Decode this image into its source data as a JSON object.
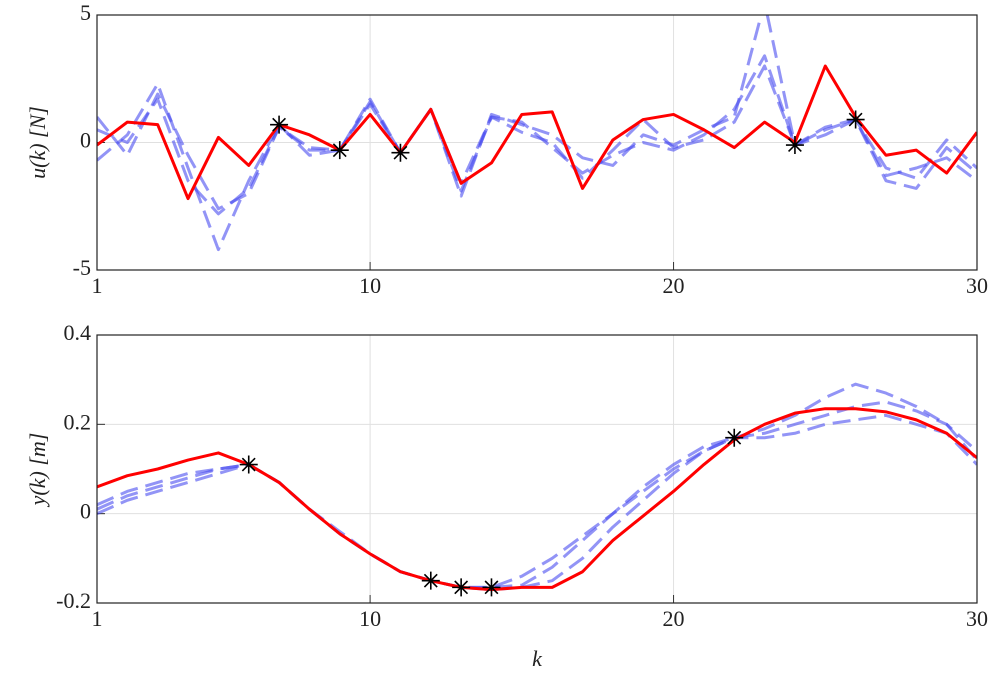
{
  "chart_data": [
    {
      "type": "line",
      "ylabel": "u(k) [N]",
      "x": [
        1,
        2,
        3,
        4,
        5,
        6,
        7,
        8,
        9,
        10,
        11,
        12,
        13,
        14,
        15,
        16,
        17,
        18,
        19,
        20,
        21,
        22,
        23,
        24,
        25,
        26,
        27,
        28,
        29,
        30
      ],
      "xlim": [
        1,
        30
      ],
      "xticks": [
        1,
        10,
        20,
        30
      ],
      "ylim": [
        -5,
        5
      ],
      "yticks": [
        -5,
        0,
        5
      ],
      "grid": true,
      "series": [
        {
          "color": "#4a4cf0",
          "dashed": true,
          "opacity": 0.6,
          "values": [
            1.0,
            -0.5,
            1.9,
            -0.5,
            -2.6,
            -2.0,
            0.6,
            -0.3,
            -0.3,
            1.6,
            -0.4,
            1.3,
            -1.9,
            1.0,
            0.8,
            -0.2,
            -1.2,
            -0.5,
            0.0,
            -0.3,
            0.3,
            1.3,
            3.4,
            -0.1,
            0.6,
            0.9,
            -1.3,
            -1.0,
            -0.6,
            -1.5
          ]
        },
        {
          "color": "#4a4cf0",
          "dashed": true,
          "opacity": 0.6,
          "values": [
            -0.7,
            0.3,
            2.3,
            -1.0,
            -4.2,
            -1.5,
            0.7,
            -0.5,
            -0.3,
            1.7,
            -0.4,
            1.3,
            -2.1,
            1.1,
            0.7,
            0.3,
            -0.6,
            -0.9,
            0.3,
            -0.1,
            0.5,
            1.0,
            5.5,
            -0.1,
            0.3,
            0.9,
            -1.5,
            -1.8,
            -0.2,
            -1.2
          ]
        },
        {
          "color": "#4a4cf0",
          "dashed": true,
          "opacity": 0.6,
          "values": [
            0.5,
            0.0,
            1.7,
            -1.5,
            -2.8,
            -1.8,
            0.6,
            -0.2,
            -0.3,
            1.5,
            -0.4,
            1.3,
            -1.6,
            1.0,
            0.4,
            0.0,
            -1.4,
            -0.3,
            0.9,
            -0.2,
            0.1,
            0.8,
            3.0,
            -0.1,
            0.5,
            0.9,
            -1.0,
            -1.4,
            0.1,
            -1.0
          ]
        },
        {
          "color": "#ff0000",
          "dashed": false,
          "opacity": 1,
          "values": [
            -0.1,
            0.8,
            0.7,
            -2.2,
            0.2,
            -0.9,
            0.7,
            0.3,
            -0.3,
            1.1,
            -0.4,
            1.3,
            -1.6,
            -0.8,
            1.1,
            1.2,
            -1.8,
            0.1,
            0.9,
            1.1,
            0.5,
            -0.2,
            0.8,
            0,
            3,
            1,
            -0.5,
            -0.3,
            -1.2,
            0.4
          ]
        }
      ],
      "markers": {
        "color": "#000000",
        "x": [
          7,
          9,
          11,
          24,
          26
        ],
        "values": [
          0.7,
          -0.3,
          -0.4,
          -0.1,
          0.9
        ]
      }
    },
    {
      "type": "line",
      "ylabel": "y(k) [m]",
      "xlabel": "k",
      "x": [
        1,
        2,
        3,
        4,
        5,
        6,
        7,
        8,
        9,
        10,
        11,
        12,
        13,
        14,
        15,
        16,
        17,
        18,
        19,
        20,
        21,
        22,
        23,
        24,
        25,
        26,
        27,
        28,
        29,
        30
      ],
      "xlim": [
        1,
        30
      ],
      "xticks": [
        1,
        10,
        20,
        30
      ],
      "ylim": [
        -0.2,
        0.4
      ],
      "yticks": [
        -0.2,
        0,
        0.2,
        0.4
      ],
      "grid": true,
      "series": [
        {
          "color": "#4a4cf0",
          "dashed": true,
          "opacity": 0.6,
          "values": [
            0.0,
            0.03,
            0.05,
            0.07,
            0.09,
            0.11,
            0.07,
            0.01,
            -0.045,
            -0.09,
            -0.13,
            -0.15,
            -0.165,
            -0.165,
            -0.16,
            -0.12,
            -0.06,
            0.0,
            0.05,
            0.1,
            0.14,
            0.17,
            0.19,
            0.22,
            0.26,
            0.29,
            0.27,
            0.24,
            0.2,
            0.12
          ]
        },
        {
          "color": "#4a4cf0",
          "dashed": true,
          "opacity": 0.6,
          "values": [
            0.01,
            0.04,
            0.06,
            0.08,
            0.1,
            0.11,
            0.07,
            0.01,
            -0.04,
            -0.09,
            -0.13,
            -0.15,
            -0.165,
            -0.165,
            -0.14,
            -0.1,
            -0.05,
            0.0,
            0.06,
            0.11,
            0.15,
            0.17,
            0.18,
            0.2,
            0.22,
            0.24,
            0.25,
            0.23,
            0.2,
            0.14
          ]
        },
        {
          "color": "#4a4cf0",
          "dashed": true,
          "opacity": 0.6,
          "values": [
            0.02,
            0.05,
            0.07,
            0.09,
            0.1,
            0.11,
            0.07,
            0.01,
            -0.045,
            -0.09,
            -0.13,
            -0.15,
            -0.165,
            -0.17,
            -0.165,
            -0.15,
            -0.1,
            -0.03,
            0.03,
            0.09,
            0.14,
            0.17,
            0.17,
            0.18,
            0.2,
            0.21,
            0.22,
            0.2,
            0.18,
            0.11
          ]
        },
        {
          "color": "#ff0000",
          "dashed": false,
          "opacity": 1,
          "values": [
            0.06,
            0.085,
            0.1,
            0.12,
            0.136,
            0.11,
            0.07,
            0.01,
            -0.045,
            -0.09,
            -0.13,
            -0.15,
            -0.165,
            -0.17,
            -0.165,
            -0.165,
            -0.13,
            -0.06,
            -0.005,
            0.05,
            0.11,
            0.165,
            0.2,
            0.225,
            0.235,
            0.235,
            0.228,
            0.21,
            0.18,
            0.125
          ]
        }
      ],
      "markers": {
        "color": "#000000",
        "x": [
          6,
          12,
          13,
          14,
          22
        ],
        "values": [
          0.11,
          -0.15,
          -0.165,
          -0.165,
          0.17
        ]
      }
    }
  ]
}
